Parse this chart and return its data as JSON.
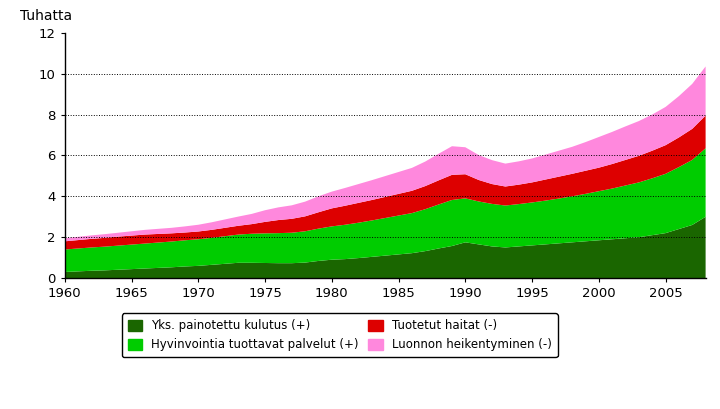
{
  "years": [
    1960,
    1961,
    1962,
    1963,
    1964,
    1965,
    1966,
    1967,
    1968,
    1969,
    1970,
    1971,
    1972,
    1973,
    1974,
    1975,
    1976,
    1977,
    1978,
    1979,
    1980,
    1981,
    1982,
    1983,
    1984,
    1985,
    1986,
    1987,
    1988,
    1989,
    1990,
    1991,
    1992,
    1993,
    1994,
    1995,
    1996,
    1997,
    1998,
    1999,
    2000,
    2001,
    2002,
    2003,
    2004,
    2005,
    2006,
    2007,
    2008
  ],
  "dark_green": [
    0.3,
    0.33,
    0.36,
    0.38,
    0.41,
    0.44,
    0.47,
    0.5,
    0.53,
    0.57,
    0.6,
    0.65,
    0.7,
    0.75,
    0.75,
    0.74,
    0.73,
    0.73,
    0.76,
    0.84,
    0.9,
    0.93,
    0.98,
    1.04,
    1.1,
    1.16,
    1.22,
    1.32,
    1.45,
    1.57,
    1.75,
    1.65,
    1.55,
    1.5,
    1.55,
    1.6,
    1.65,
    1.7,
    1.75,
    1.8,
    1.85,
    1.9,
    1.95,
    2.0,
    2.1,
    2.2,
    2.4,
    2.6,
    3.0
  ],
  "light_green": [
    1.1,
    1.12,
    1.14,
    1.16,
    1.18,
    1.2,
    1.22,
    1.24,
    1.26,
    1.28,
    1.3,
    1.32,
    1.35,
    1.38,
    1.42,
    1.45,
    1.47,
    1.49,
    1.53,
    1.58,
    1.63,
    1.68,
    1.73,
    1.78,
    1.84,
    1.9,
    1.96,
    2.05,
    2.15,
    2.25,
    2.15,
    2.1,
    2.08,
    2.05,
    2.07,
    2.1,
    2.14,
    2.19,
    2.25,
    2.32,
    2.4,
    2.48,
    2.58,
    2.68,
    2.78,
    2.9,
    3.03,
    3.18,
    3.35
  ],
  "red": [
    0.4,
    0.41,
    0.42,
    0.43,
    0.44,
    0.44,
    0.44,
    0.42,
    0.4,
    0.38,
    0.38,
    0.39,
    0.41,
    0.43,
    0.47,
    0.56,
    0.64,
    0.68,
    0.73,
    0.8,
    0.88,
    0.93,
    0.97,
    1.0,
    1.03,
    1.06,
    1.09,
    1.13,
    1.18,
    1.23,
    1.18,
    1.05,
    0.97,
    0.93,
    0.95,
    0.98,
    1.03,
    1.07,
    1.1,
    1.13,
    1.15,
    1.2,
    1.25,
    1.3,
    1.35,
    1.4,
    1.45,
    1.52,
    1.6
  ],
  "pink": [
    0.15,
    0.16,
    0.17,
    0.18,
    0.19,
    0.21,
    0.23,
    0.25,
    0.27,
    0.3,
    0.33,
    0.37,
    0.41,
    0.45,
    0.5,
    0.57,
    0.62,
    0.66,
    0.72,
    0.78,
    0.82,
    0.87,
    0.92,
    0.97,
    1.02,
    1.07,
    1.12,
    1.2,
    1.3,
    1.4,
    1.32,
    1.22,
    1.17,
    1.12,
    1.14,
    1.17,
    1.22,
    1.27,
    1.32,
    1.4,
    1.5,
    1.57,
    1.64,
    1.7,
    1.77,
    1.87,
    2.02,
    2.2,
    2.4
  ],
  "colors": {
    "dark_green": "#1a6600",
    "light_green": "#00cc00",
    "red": "#dd0000",
    "pink": "#ff88dd"
  },
  "title": "Tuhatta",
  "ylim": [
    0,
    12
  ],
  "yticks": [
    0,
    2,
    4,
    6,
    8,
    10,
    12
  ],
  "grid_yticks": [
    2,
    4,
    6,
    8,
    10
  ],
  "xticks": [
    1960,
    1965,
    1970,
    1975,
    1980,
    1985,
    1990,
    1995,
    2000,
    2005
  ],
  "legend": [
    "Yks. painotettu kulutus (+)",
    "Hyvinvointia tuottavat palvelut (+)",
    "Tuotetut haitat (-)",
    "Luonnon heikentyminen (-)"
  ]
}
